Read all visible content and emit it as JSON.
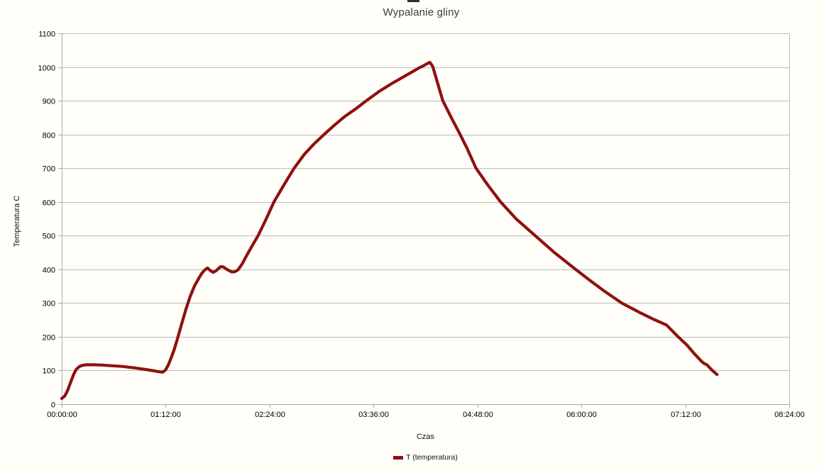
{
  "title": "Wypalanie gliny",
  "colors": {
    "series_line": "#8e1111",
    "gridline": "#bcbcbc",
    "axis": "#a8a8a8",
    "background": "#fffef8",
    "title_text": "#3b3b3b"
  },
  "chart_data": {
    "type": "line",
    "title": "Wypalanie gliny",
    "xlabel": "Czas",
    "ylabel": "Temperatura C",
    "grid": true,
    "legend": {
      "position": "bottom",
      "entries": [
        {
          "label": "T (temperatura)",
          "color": "#8e1111"
        }
      ]
    },
    "ylim": [
      0,
      1100
    ],
    "y_ticks": [
      0,
      100,
      200,
      300,
      400,
      500,
      600,
      700,
      800,
      900,
      1000,
      1100
    ],
    "xlim_minutes": [
      0,
      504
    ],
    "x_tick_labels": [
      "00:00:00",
      "01:12:00",
      "02:24:00",
      "03:36:00",
      "04:48:00",
      "06:00:00",
      "07:12:00",
      "08:24:00"
    ],
    "x_tick_minutes": [
      0,
      72,
      144,
      216,
      288,
      360,
      432,
      504
    ],
    "series": [
      {
        "name": "T (temperatura)",
        "color": "#8e1111",
        "points_min_degC": [
          [
            0,
            17
          ],
          [
            2,
            24
          ],
          [
            4,
            40
          ],
          [
            6,
            63
          ],
          [
            8,
            86
          ],
          [
            10,
            103
          ],
          [
            12,
            111
          ],
          [
            14,
            115
          ],
          [
            17,
            117
          ],
          [
            22,
            117
          ],
          [
            28,
            116
          ],
          [
            35,
            114
          ],
          [
            42,
            112
          ],
          [
            50,
            108
          ],
          [
            58,
            103
          ],
          [
            64,
            99
          ],
          [
            68,
            96
          ],
          [
            70,
            95
          ],
          [
            72,
            102
          ],
          [
            74,
            118
          ],
          [
            76,
            140
          ],
          [
            78,
            163
          ],
          [
            80,
            192
          ],
          [
            83,
            237
          ],
          [
            86,
            281
          ],
          [
            89,
            320
          ],
          [
            92,
            351
          ],
          [
            95,
            374
          ],
          [
            97,
            388
          ],
          [
            99,
            398
          ],
          [
            101,
            404
          ],
          [
            103,
            396
          ],
          [
            105,
            391
          ],
          [
            107,
            396
          ],
          [
            109,
            404
          ],
          [
            110,
            408
          ],
          [
            112,
            407
          ],
          [
            114,
            401
          ],
          [
            116,
            396
          ],
          [
            118,
            392
          ],
          [
            120,
            393
          ],
          [
            122,
            398
          ],
          [
            125,
            416
          ],
          [
            128,
            440
          ],
          [
            131,
            463
          ],
          [
            136,
            500
          ],
          [
            141,
            544
          ],
          [
            147,
            600
          ],
          [
            154,
            651
          ],
          [
            161,
            700
          ],
          [
            168,
            741
          ],
          [
            175,
            773
          ],
          [
            182,
            801
          ],
          [
            189,
            828
          ],
          [
            196,
            853
          ],
          [
            204,
            877
          ],
          [
            211,
            900
          ],
          [
            220,
            928
          ],
          [
            229,
            952
          ],
          [
            238,
            974
          ],
          [
            247,
            996
          ],
          [
            251,
            1005
          ],
          [
            254,
            1012
          ],
          [
            255,
            1014
          ],
          [
            257,
            1002
          ],
          [
            264,
            900
          ],
          [
            270,
            849
          ],
          [
            276,
            800
          ],
          [
            281,
            757
          ],
          [
            287,
            700
          ],
          [
            295,
            651
          ],
          [
            304,
            600
          ],
          [
            315,
            549
          ],
          [
            328,
            500
          ],
          [
            341,
            451
          ],
          [
            356,
            400
          ],
          [
            366,
            367
          ],
          [
            376,
            335
          ],
          [
            388,
            300
          ],
          [
            400,
            273
          ],
          [
            410,
            252
          ],
          [
            419,
            235
          ],
          [
            427,
            200
          ],
          [
            433,
            176
          ],
          [
            438,
            151
          ],
          [
            443,
            128
          ],
          [
            445,
            121
          ],
          [
            447,
            117
          ],
          [
            450,
            103
          ],
          [
            454,
            88
          ]
        ]
      }
    ]
  }
}
